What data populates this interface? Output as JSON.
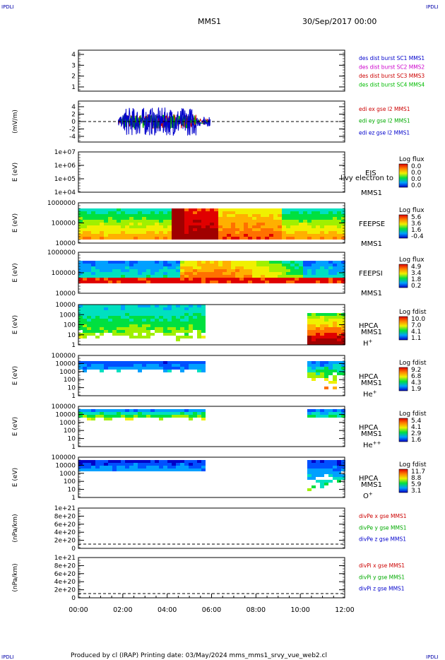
{
  "corner_label": "IPDLI",
  "header": {
    "spacecraft": "MMS1",
    "date": "30/Sep/2017 00:00"
  },
  "footer": {
    "text": "Produced by cl (IRAP)   Printing date: 03/May/2024   mms_mms1_srvy_vue_web2.cl"
  },
  "chart_data": {
    "type": "heatmap",
    "x_ticks": [
      "00:00",
      "02:00",
      "04:00",
      "06:00",
      "08:00",
      "10:00",
      "12:00"
    ],
    "x_range_hours": [
      0,
      12
    ],
    "panels": [
      {
        "id": "burst",
        "type": "line",
        "ylabel": "",
        "yticks": [
          "4",
          "3",
          "2",
          "1"
        ],
        "ylim": [
          0.5,
          4.5
        ],
        "legend": [
          {
            "label": "des dist burst SC1 MMS1",
            "color": "#0000cc"
          },
          {
            "label": "des dist burst SC2 MMS2",
            "color": "#cc00cc"
          },
          {
            "label": "des dist burst SC3 MMS3",
            "color": "#cc0000"
          },
          {
            "label": "des dist burst SC4 MMS4",
            "color": "#00bb00"
          }
        ]
      },
      {
        "id": "edi",
        "type": "line",
        "ylabel": "(mV/m)",
        "yticks": [
          "4",
          "2",
          "0",
          "-2",
          "-4"
        ],
        "ylim": [
          -5,
          5
        ],
        "data_span_hours": [
          1.8,
          5.95
        ],
        "zero_line": true,
        "legend": [
          {
            "label": "edi ex gse l2 MMS1",
            "color": "#cc0000"
          },
          {
            "label": "edi ey gse l2 MMS1",
            "color": "#00aa00"
          },
          {
            "label": "edi ez gse l2 MMS1",
            "color": "#0000cc"
          }
        ]
      },
      {
        "id": "eis",
        "type": "heatmap",
        "ylabel": "E (eV)",
        "yticks": [
          "1e+07",
          "1e+06",
          "1e+05",
          "1e+04"
        ],
        "labels": [
          "EIS",
          "MMS1"
        ],
        "overlay_text": "l  vy electron to",
        "colorbar": {
          "title": "Log flux",
          "ticks": [
            "0.0",
            "0.0",
            "0.0",
            "0.0"
          ]
        }
      },
      {
        "id": "feeps_e",
        "type": "heatmap",
        "ylabel": "E (eV)",
        "yticks": [
          "1000000",
          "100000",
          "10000"
        ],
        "labels": [
          "FEEPSE",
          "MMS1"
        ],
        "colorbar": {
          "title": "Log flux",
          "ticks": [
            "5.6",
            "3.6",
            "1.6",
            "-0.4"
          ]
        }
      },
      {
        "id": "feeps_i",
        "type": "heatmap",
        "ylabel": "E (eV)",
        "yticks": [
          "1000000",
          "100000",
          "10000"
        ],
        "labels": [
          "FEEPSI",
          "MMS1"
        ],
        "colorbar": {
          "title": "Log flux",
          "ticks": [
            "4.9",
            "3.4",
            "1.8",
            "0.2"
          ]
        }
      },
      {
        "id": "hpca_h",
        "type": "heatmap",
        "ylabel": "E (eV)",
        "yticks": [
          "10000",
          "1000",
          "100",
          "10",
          "1"
        ],
        "labels": [
          "HPCA",
          "MMS1"
        ],
        "species": "H",
        "species_sup": "+",
        "data_span_hours": [
          [
            0,
            5.7
          ],
          [
            10.3,
            12
          ]
        ],
        "colorbar": {
          "title": "Log fdist",
          "ticks": [
            "10.0",
            "7.0",
            "4.1",
            "1.1"
          ]
        }
      },
      {
        "id": "hpca_he",
        "type": "heatmap",
        "ylabel": "E (eV)",
        "yticks": [
          "100000",
          "10000",
          "1000",
          "100",
          "10",
          "1"
        ],
        "labels": [
          "HPCA",
          "MMS1"
        ],
        "species": "He",
        "species_sup": "+",
        "data_span_hours": [
          [
            0,
            5.7
          ],
          [
            10.3,
            12
          ]
        ],
        "colorbar": {
          "title": "Log fdist",
          "ticks": [
            "9.2",
            "6.8",
            "4.3",
            "1.9"
          ]
        }
      },
      {
        "id": "hpca_hepp",
        "type": "heatmap",
        "ylabel": "E (eV)",
        "yticks": [
          "100000",
          "10000",
          "1000",
          "100",
          "10",
          "1"
        ],
        "labels": [
          "HPCA",
          "MMS1"
        ],
        "species": "He",
        "species_sup": "++",
        "data_span_hours": [
          [
            0,
            5.7
          ],
          [
            10.3,
            12
          ]
        ],
        "colorbar": {
          "title": "Log fdist",
          "ticks": [
            "5.4",
            "4.1",
            "2.9",
            "1.6"
          ]
        }
      },
      {
        "id": "hpca_o",
        "type": "heatmap",
        "ylabel": "E (eV)",
        "yticks": [
          "100000",
          "10000",
          "1000",
          "100",
          "10",
          "1"
        ],
        "labels": [
          "HPCA",
          "MMS1"
        ],
        "species": "O",
        "species_sup": "+",
        "data_span_hours": [
          [
            0,
            5.7
          ],
          [
            10.3,
            12
          ]
        ],
        "colorbar": {
          "title": "Log fdist",
          "ticks": [
            "11.7",
            "8.8",
            "5.9",
            "3.1"
          ]
        }
      },
      {
        "id": "divpe",
        "type": "line",
        "ylabel": "(nPa/km)",
        "yticks": [
          "1e+21",
          "8e+20",
          "6e+20",
          "4e+20",
          "2e+20",
          "0"
        ],
        "ylim": [
          0,
          1e+21
        ],
        "zero_line": true,
        "legend": [
          {
            "label": "divPe x gse MMS1",
            "color": "#cc0000"
          },
          {
            "label": "divPe y gse MMS1",
            "color": "#00aa00"
          },
          {
            "label": "divPe z gse MMS1",
            "color": "#0000cc"
          }
        ]
      },
      {
        "id": "divpi",
        "type": "line",
        "ylabel": "(nPa/km)",
        "yticks": [
          "1e+21",
          "8e+20",
          "6e+20",
          "4e+20",
          "2e+20",
          "0"
        ],
        "ylim": [
          0,
          1e+21
        ],
        "zero_line": true,
        "legend": [
          {
            "label": "divPi x gse MMS1",
            "color": "#cc0000"
          },
          {
            "label": "divPi y gse MMS1",
            "color": "#00aa00"
          },
          {
            "label": "divPi z gse MMS1",
            "color": "#0000cc"
          }
        ]
      }
    ]
  }
}
